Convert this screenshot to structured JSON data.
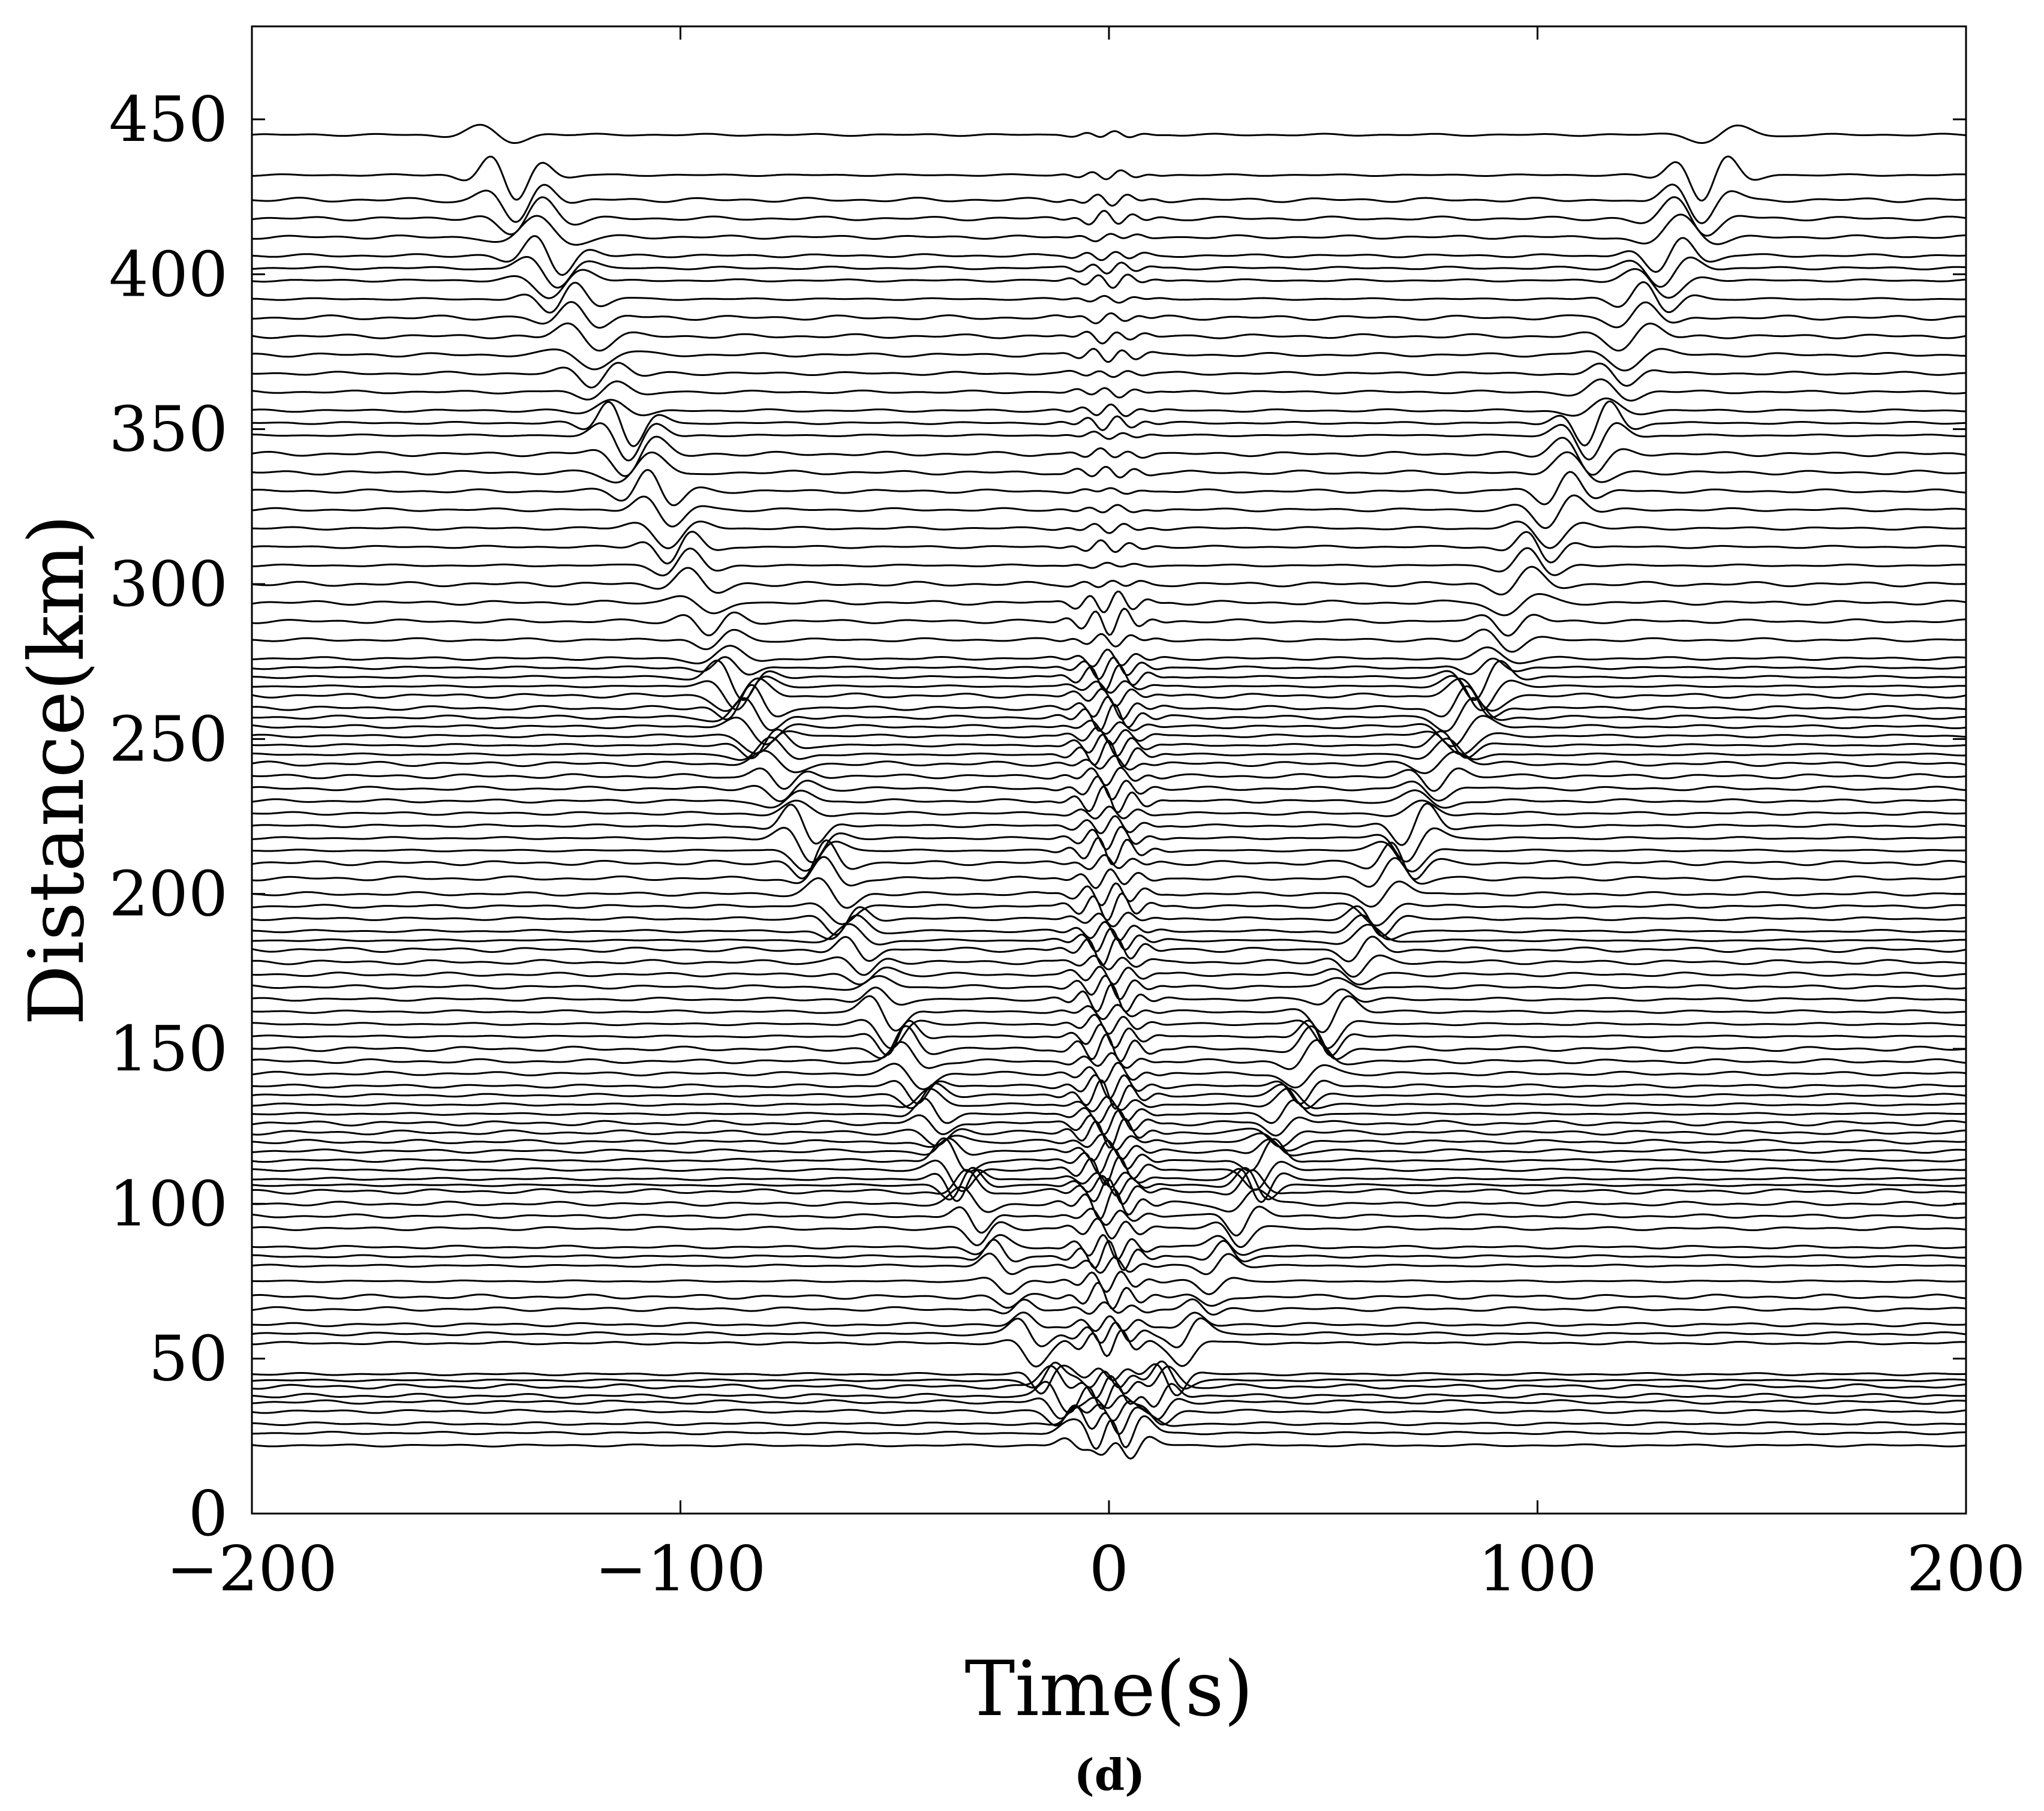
{
  "chart_data": {
    "type": "line",
    "subtype": "seismic-record-section",
    "xlabel": "Time(s)",
    "ylabel": "Distance(km)",
    "panel_label": "(d)",
    "xlim": [
      -200,
      200
    ],
    "ylim": [
      0,
      480
    ],
    "xticks": [
      -200,
      -100,
      0,
      100,
      200
    ],
    "xtick_labels": [
      "−200",
      "−100",
      "0",
      "100",
      "200"
    ],
    "yticks": [
      0,
      50,
      100,
      150,
      200,
      250,
      300,
      350,
      400,
      450
    ],
    "ytick_labels": [
      "0",
      "50",
      "100",
      "150",
      "200",
      "250",
      "300",
      "350",
      "400",
      "450"
    ],
    "grid": false,
    "legend": "none",
    "line_color": "#000000",
    "arrival_velocity_km_s": 3.1,
    "trace_offsets_km": [
      22,
      26,
      29,
      33,
      36,
      38,
      41,
      43,
      45,
      55,
      58,
      61,
      66,
      70,
      75,
      80,
      83,
      86,
      92,
      96,
      100,
      104,
      106,
      108,
      111,
      114,
      117,
      120,
      123,
      126,
      129,
      132,
      135,
      138,
      142,
      146,
      150,
      154,
      158,
      162,
      166,
      170,
      174,
      178,
      182,
      185,
      188,
      192,
      196,
      200,
      205,
      210,
      214,
      218,
      222,
      226,
      230,
      234,
      238,
      242,
      245,
      248,
      251,
      254,
      257,
      260,
      264,
      267,
      270,
      273,
      276,
      282,
      288,
      294,
      300,
      306,
      312,
      318,
      324,
      330,
      336,
      342,
      348,
      352,
      356,
      362,
      368,
      374,
      380,
      386,
      392,
      398,
      402,
      406,
      412,
      418,
      424,
      432,
      445
    ]
  }
}
